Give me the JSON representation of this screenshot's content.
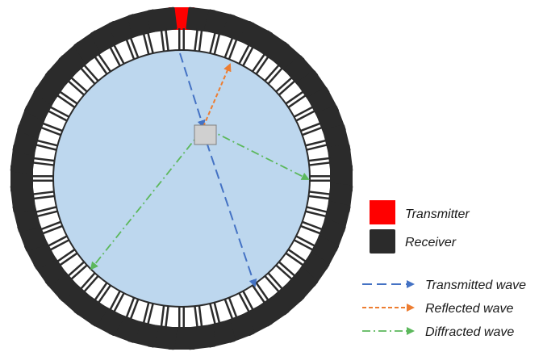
{
  "colors": {
    "background": "#ffffff",
    "water": "#bdd7ee",
    "ring": "#ffffff",
    "outline": "#2b2b2b",
    "transmitter": "#ff0000",
    "receiver": "#2b2b2b",
    "scatterer": "#d0d0d0",
    "transmitted_wave": "#4472c4",
    "reflected_wave": "#ed7d31",
    "diffracted_wave": "#5cb85c"
  },
  "array": {
    "element_count": 52
  },
  "legend": {
    "transmitter_label": "Transmitter",
    "receiver_label": "Receiver",
    "transmitted_label": "Transmitted wave",
    "reflected_label": "Reflected wave",
    "diffracted_label": "Diffracted wave"
  }
}
